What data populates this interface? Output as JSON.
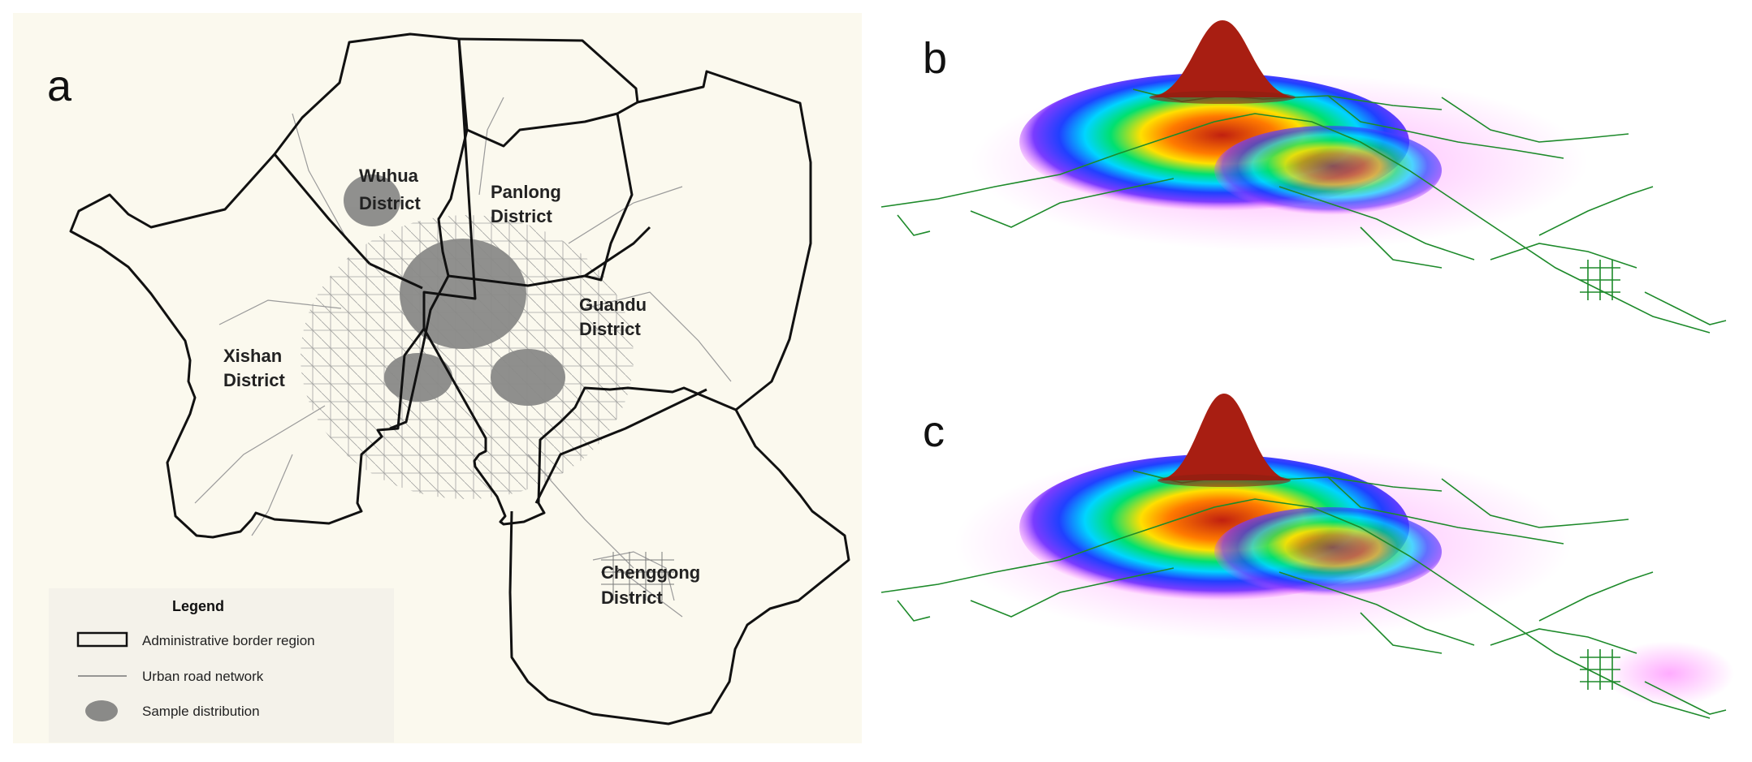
{
  "panels": {
    "a": "a",
    "b": "b",
    "c": "c"
  },
  "districts": {
    "wuhua": [
      "Wuhua",
      "District"
    ],
    "panlong": [
      "Panlong",
      "District"
    ],
    "xishan": [
      "Xishan",
      "District"
    ],
    "guandu": [
      "Guandu",
      "District"
    ],
    "chenggong": [
      "Chenggong",
      "District"
    ]
  },
  "legend": {
    "title": "Legend",
    "items": [
      "Administrative border region",
      "Urban road network",
      "Sample distribution"
    ]
  },
  "colors": {
    "map_background": "#fbf9ee",
    "border": "#111111",
    "road": "#8a8a8a",
    "sample": "#8a8a88",
    "network": "#1d8a2a",
    "peak": "#a81e12",
    "density_ramp": [
      "#ff66ff",
      "#7a3cff",
      "#2040ff",
      "#00d5ff",
      "#00e070",
      "#ffe000",
      "#ff7a00",
      "#c02010"
    ]
  }
}
